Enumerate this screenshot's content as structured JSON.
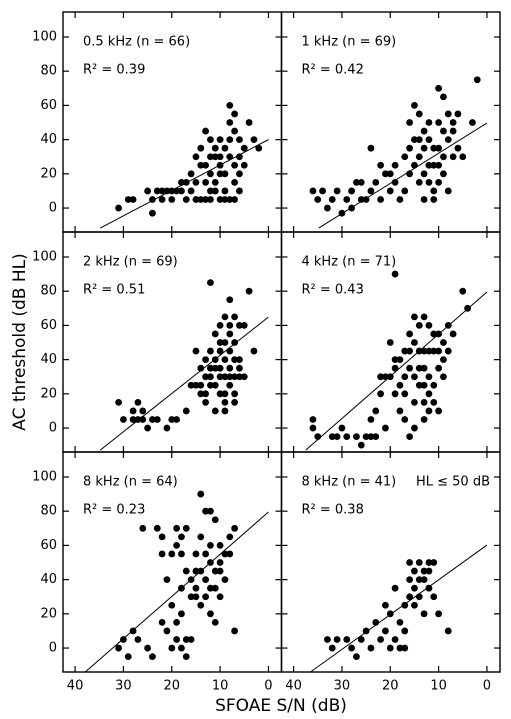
{
  "x_label": "SFOAE S/N (dB)",
  "y_label": "AC threshold (dB HL)",
  "chart_data": [
    {
      "type": "scatter",
      "title": "0.5 kHz (n = 66)",
      "r2": "R² = 0.39",
      "color": "#000000",
      "xlim": [
        42.5,
        -2.7
      ],
      "ylim": [
        -14,
        114.6
      ],
      "xticks": [
        40,
        30,
        20,
        10,
        0
      ],
      "yticks": [
        0,
        20,
        40,
        60,
        80,
        100
      ],
      "x": [
        31,
        29,
        28,
        25,
        24,
        24,
        23,
        22,
        21,
        20,
        19,
        18,
        17,
        17,
        16,
        15,
        14,
        14,
        13,
        13,
        12,
        12,
        12,
        11,
        11,
        10,
        10,
        9,
        9,
        8,
        8,
        8,
        7,
        7,
        7,
        6,
        6,
        5,
        4,
        3,
        2,
        13,
        11,
        10,
        9,
        12,
        14,
        15,
        7,
        8,
        10,
        6,
        5,
        11,
        9,
        13,
        16,
        18,
        20,
        22,
        7,
        12,
        10,
        8,
        15,
        6
      ],
      "y": [
        0,
        5,
        5,
        10,
        -3,
        5,
        10,
        5,
        10,
        10,
        10,
        10,
        15,
        5,
        20,
        30,
        35,
        5,
        45,
        25,
        20,
        40,
        5,
        30,
        15,
        25,
        5,
        35,
        20,
        60,
        30,
        5,
        55,
        45,
        25,
        40,
        20,
        35,
        50,
        40,
        35,
        15,
        35,
        40,
        10,
        30,
        25,
        5,
        15,
        50,
        20,
        10,
        25,
        10,
        5,
        5,
        10,
        15,
        5,
        10,
        5,
        10,
        30,
        40,
        15,
        30
      ],
      "fit": {
        "x": [
          34.8,
          0
        ],
        "y": [
          -11.7,
          40
        ]
      }
    },
    {
      "type": "scatter",
      "title": "1 kHz (n = 69)",
      "r2": "R² = 0.42",
      "color": "#000000",
      "xlim": [
        42.5,
        -2.7
      ],
      "ylim": [
        -14,
        114.6
      ],
      "xticks": [
        40,
        30,
        20,
        10,
        0
      ],
      "yticks": [
        0,
        20,
        40,
        60,
        80,
        100
      ],
      "x": [
        36,
        35,
        34,
        33,
        32,
        31,
        30,
        29,
        28,
        27,
        26,
        25,
        24,
        22,
        21,
        20,
        19,
        18,
        17,
        16,
        16,
        15,
        15,
        14,
        14,
        13,
        13,
        12,
        12,
        11,
        11,
        10,
        10,
        10,
        9,
        9,
        9,
        8,
        8,
        7,
        7,
        6,
        5,
        2,
        3,
        13,
        11,
        12,
        14,
        17,
        19,
        23,
        24,
        26,
        10,
        8,
        9,
        11,
        7,
        12,
        14,
        15,
        16,
        13,
        10,
        6,
        20,
        28,
        22
      ],
      "y": [
        10,
        5,
        10,
        0,
        5,
        10,
        -3,
        5,
        10,
        15,
        15,
        5,
        35,
        5,
        20,
        10,
        25,
        5,
        30,
        50,
        20,
        60,
        40,
        55,
        30,
        45,
        20,
        40,
        15,
        35,
        10,
        70,
        50,
        25,
        65,
        45,
        20,
        40,
        10,
        45,
        30,
        35,
        30,
        75,
        50,
        5,
        5,
        25,
        15,
        10,
        15,
        15,
        10,
        5,
        35,
        55,
        30,
        25,
        50,
        50,
        40,
        25,
        35,
        35,
        15,
        55,
        20,
        0,
        25
      ],
      "fit": {
        "x": [
          34.8,
          0
        ],
        "y": [
          -11.7,
          49.7
        ]
      }
    },
    {
      "type": "scatter",
      "title": "2 kHz (n = 69)",
      "r2": "R² = 0.51",
      "color": "#000000",
      "xlim": [
        42.5,
        -2.7
      ],
      "ylim": [
        -14,
        114.6
      ],
      "xticks": [
        40,
        30,
        20,
        10,
        0
      ],
      "yticks": [
        0,
        20,
        40,
        60,
        80,
        100
      ],
      "x": [
        31,
        30,
        28,
        27,
        27,
        26,
        25,
        24,
        23,
        21,
        20,
        19,
        17,
        16,
        15,
        15,
        14,
        14,
        13,
        13,
        12,
        12,
        12,
        11,
        11,
        11,
        10,
        10,
        10,
        10,
        9,
        9,
        9,
        9,
        9,
        8,
        8,
        8,
        8,
        8,
        8,
        7,
        7,
        7,
        7,
        6,
        6,
        5,
        4,
        3,
        12,
        13,
        14,
        11,
        10,
        9,
        7,
        6,
        5,
        10,
        11,
        12,
        13,
        8,
        6,
        7,
        9,
        28,
        26
      ],
      "y": [
        15,
        5,
        10,
        5,
        15,
        10,
        0,
        5,
        5,
        0,
        5,
        5,
        10,
        25,
        45,
        25,
        35,
        20,
        30,
        15,
        85,
        45,
        30,
        40,
        25,
        10,
        60,
        45,
        35,
        20,
        65,
        50,
        40,
        30,
        15,
        75,
        60,
        55,
        45,
        35,
        25,
        50,
        40,
        30,
        20,
        40,
        35,
        30,
        80,
        45,
        35,
        40,
        25,
        55,
        50,
        20,
        65,
        60,
        60,
        30,
        35,
        25,
        20,
        30,
        30,
        15,
        10,
        5,
        5
      ],
      "fit": {
        "x": [
          34.8,
          0
        ],
        "y": [
          -12.9,
          64.9
        ]
      }
    },
    {
      "type": "scatter",
      "title": "4 kHz (n = 71)",
      "r2": "R² = 0.43",
      "color": "#000000",
      "xlim": [
        42.5,
        -2.7
      ],
      "ylim": [
        -14,
        114.6
      ],
      "xticks": [
        40,
        30,
        20,
        10,
        0
      ],
      "yticks": [
        0,
        20,
        40,
        60,
        80,
        100
      ],
      "x": [
        36,
        36,
        35,
        32,
        30,
        29,
        27,
        26,
        25,
        24,
        23,
        24,
        23,
        22,
        21,
        20,
        19,
        19,
        18,
        18,
        17,
        17,
        16,
        16,
        16,
        15,
        15,
        15,
        15,
        14,
        14,
        14,
        13,
        13,
        13,
        13,
        12,
        12,
        12,
        12,
        11,
        11,
        11,
        10,
        10,
        10,
        9,
        9,
        9,
        8,
        8,
        7,
        5,
        4,
        21,
        22,
        20,
        19,
        18,
        17,
        16,
        14,
        13,
        11,
        10,
        12,
        13,
        15,
        17,
        19,
        31
      ],
      "y": [
        5,
        0,
        -5,
        -5,
        0,
        -5,
        -5,
        -10,
        -5,
        -5,
        -5,
        5,
        10,
        20,
        30,
        30,
        90,
        40,
        25,
        10,
        45,
        20,
        55,
        35,
        -5,
        65,
        50,
        30,
        0,
        60,
        45,
        25,
        65,
        45,
        35,
        15,
        60,
        45,
        30,
        20,
        55,
        45,
        25,
        55,
        45,
        35,
        50,
        40,
        30,
        60,
        45,
        55,
        80,
        70,
        0,
        30,
        50,
        35,
        40,
        30,
        45,
        35,
        25,
        15,
        10,
        10,
        5,
        15,
        5,
        20,
        -5
      ],
      "fit": {
        "x": [
          37.5,
          0
        ],
        "y": [
          -12.9,
          79.5
        ]
      }
    },
    {
      "type": "scatter",
      "title": "8 kHz (n = 64)",
      "r2": "R² = 0.23",
      "color": "#000000",
      "xlim": [
        42.5,
        -2.7
      ],
      "ylim": [
        -14,
        114.6
      ],
      "xticks": [
        40,
        30,
        20,
        10,
        0
      ],
      "yticks": [
        0,
        20,
        40,
        60,
        80,
        100
      ],
      "x": [
        31,
        30,
        29,
        28,
        27,
        26,
        25,
        24,
        23,
        22,
        22,
        21,
        21,
        20,
        20,
        19,
        19,
        19,
        19,
        18,
        18,
        18,
        18,
        17,
        17,
        17,
        17,
        16,
        16,
        15,
        15,
        15,
        14,
        14,
        14,
        14,
        13,
        13,
        13,
        13,
        12,
        12,
        12,
        12,
        12,
        11,
        11,
        11,
        11,
        10,
        10,
        10,
        9,
        9,
        8,
        8,
        7,
        7,
        16,
        20,
        22,
        18,
        15,
        10
      ],
      "y": [
        0,
        5,
        -5,
        10,
        5,
        70,
        0,
        -5,
        70,
        65,
        55,
        40,
        10,
        25,
        0,
        70,
        60,
        15,
        5,
        65,
        55,
        20,
        0,
        70,
        45,
        5,
        -5,
        40,
        5,
        55,
        35,
        30,
        90,
        65,
        45,
        25,
        80,
        55,
        40,
        30,
        80,
        60,
        50,
        35,
        20,
        75,
        45,
        35,
        15,
        60,
        50,
        45,
        55,
        40,
        65,
        55,
        70,
        10,
        30,
        55,
        15,
        35,
        45,
        30
      ],
      "fit": {
        "x": [
          37.9,
          0
        ],
        "y": [
          -14,
          79.5
        ]
      }
    },
    {
      "type": "scatter",
      "title": "8 kHz (n = 41)",
      "note": "HL ≤ 50 dB",
      "r2": "R² = 0.38",
      "color": "#000000",
      "xlim": [
        42.5,
        -2.7
      ],
      "ylim": [
        -14,
        114.6
      ],
      "xticks": [
        40,
        30,
        20,
        10,
        0
      ],
      "yticks": [
        0,
        20,
        40,
        60,
        80,
        100
      ],
      "x": [
        33,
        32,
        31,
        29,
        28,
        27,
        26,
        25,
        24,
        23,
        22,
        21,
        21,
        20,
        20,
        19,
        19,
        18,
        18,
        17,
        17,
        16,
        16,
        16,
        15,
        15,
        15,
        14,
        14,
        13,
        13,
        13,
        12,
        12,
        12,
        11,
        11,
        10,
        8,
        17,
        14
      ],
      "y": [
        5,
        0,
        5,
        5,
        0,
        -5,
        5,
        10,
        0,
        15,
        5,
        25,
        10,
        20,
        0,
        35,
        5,
        15,
        0,
        0,
        25,
        50,
        40,
        30,
        45,
        35,
        25,
        50,
        30,
        45,
        40,
        20,
        50,
        45,
        35,
        50,
        30,
        20,
        10,
        10,
        40
      ],
      "fit": {
        "x": [
          36.5,
          0
        ],
        "y": [
          -14,
          60.2
        ]
      }
    }
  ]
}
